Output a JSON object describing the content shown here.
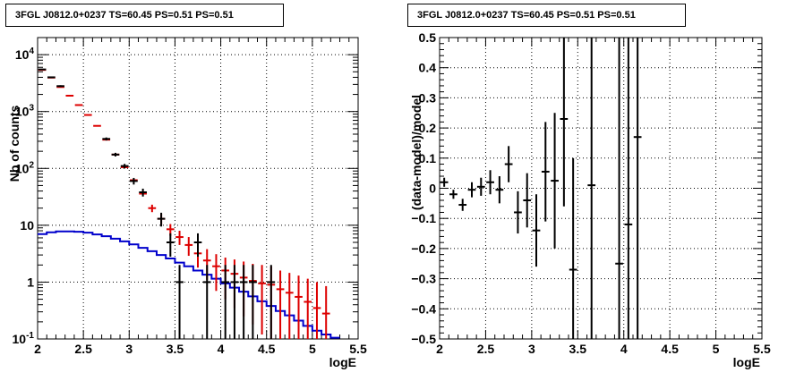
{
  "chart_data": [
    {
      "type": "scatter",
      "title": "3FGL J0812.0+0237 TS=60.45 PS=0.51 PS=0.51",
      "xlabel": "logE",
      "ylabel": "Nb of counts",
      "xlim": [
        2,
        5.5
      ],
      "ylim": [
        0.1,
        20000
      ],
      "yscale": "log",
      "grid": true,
      "x_ticks": [
        "2",
        "2.5",
        "3",
        "3.5",
        "4",
        "4.5",
        "5",
        "5.5"
      ],
      "y_ticks": [
        "10^{-1}",
        "1",
        "10",
        "10^{2}",
        "10^{3}",
        "10^{4}"
      ],
      "colors": {
        "data": "#000000",
        "model": "#dd0000",
        "background": "#0000cc"
      },
      "series": [
        {
          "role": "data",
          "points": [
            {
              "x": 2.05,
              "y": 5500,
              "lo": 5350,
              "hi": 5650
            },
            {
              "x": 2.15,
              "y": 4000,
              "lo": 3870,
              "hi": 4130
            },
            {
              "x": 2.25,
              "y": 2800,
              "lo": 2700,
              "hi": 2900
            },
            {
              "x": 2.75,
              "y": 330,
              "lo": 310,
              "hi": 350
            },
            {
              "x": 2.85,
              "y": 175,
              "lo": 162,
              "hi": 188
            },
            {
              "x": 2.95,
              "y": 110,
              "lo": 100,
              "hi": 120
            },
            {
              "x": 3.05,
              "y": 60,
              "lo": 52,
              "hi": 68
            },
            {
              "x": 3.15,
              "y": 38,
              "lo": 32,
              "hi": 44
            },
            {
              "x": 3.35,
              "y": 13,
              "lo": 9.5,
              "hi": 16.6
            },
            {
              "x": 3.45,
              "y": 5,
              "lo": 2.8,
              "hi": 7.2
            },
            {
              "x": 3.55,
              "y": 1,
              "lo": 0.1,
              "hi": 2
            },
            {
              "x": 3.75,
              "y": 5,
              "lo": 2.8,
              "hi": 7.2
            },
            {
              "x": 3.85,
              "y": 1,
              "lo": 0.1,
              "hi": 2
            },
            {
              "x": 4.05,
              "y": 1,
              "lo": 0.1,
              "hi": 2
            },
            {
              "x": 4.15,
              "y": 1,
              "lo": 0.1,
              "hi": 2
            },
            {
              "x": 4.25,
              "y": 1,
              "lo": 0.1,
              "hi": 2
            },
            {
              "x": 4.35,
              "y": 1,
              "lo": 0.1,
              "hi": 2
            },
            {
              "x": 4.55,
              "y": 1,
              "lo": 0.1,
              "hi": 2
            }
          ]
        },
        {
          "role": "model",
          "points": [
            {
              "x": 2.05,
              "y": 5400
            },
            {
              "x": 2.15,
              "y": 3950
            },
            {
              "x": 2.25,
              "y": 2700
            },
            {
              "x": 2.35,
              "y": 1900
            },
            {
              "x": 2.45,
              "y": 1300
            },
            {
              "x": 2.55,
              "y": 870
            },
            {
              "x": 2.65,
              "y": 560
            },
            {
              "x": 2.75,
              "y": 320
            },
            {
              "x": 2.85,
              "y": 175
            },
            {
              "x": 2.95,
              "y": 105
            },
            {
              "x": 3.05,
              "y": 62
            },
            {
              "x": 3.15,
              "y": 36
            },
            {
              "x": 3.25,
              "y": 20,
              "lo": 17,
              "hi": 23
            },
            {
              "x": 3.35,
              "y": 13,
              "lo": 10,
              "hi": 16
            },
            {
              "x": 3.45,
              "y": 8.5,
              "lo": 6.5,
              "hi": 10.5
            },
            {
              "x": 3.55,
              "y": 6.2,
              "lo": 4.5,
              "hi": 8
            },
            {
              "x": 3.65,
              "y": 4.5,
              "lo": 2.9,
              "hi": 6.2
            },
            {
              "x": 3.75,
              "y": 3.2,
              "lo": 1.8,
              "hi": 4.6
            },
            {
              "x": 3.85,
              "y": 2.4,
              "lo": 1.1,
              "hi": 3.8
            },
            {
              "x": 3.95,
              "y": 1.9,
              "lo": 0.7,
              "hi": 3.1
            },
            {
              "x": 4.05,
              "y": 1.6,
              "lo": 0.5,
              "hi": 2.7
            },
            {
              "x": 4.15,
              "y": 1.4,
              "lo": 0.35,
              "hi": 2.5
            },
            {
              "x": 4.25,
              "y": 1.2,
              "lo": 0.25,
              "hi": 2.3
            },
            {
              "x": 4.35,
              "y": 1.05,
              "lo": 0.18,
              "hi": 2.1
            },
            {
              "x": 4.45,
              "y": 0.95,
              "lo": 0.12,
              "hi": 2.0
            },
            {
              "x": 4.55,
              "y": 0.9,
              "lo": 0.1,
              "hi": 1.9
            },
            {
              "x": 4.65,
              "y": 0.75,
              "lo": 0.1,
              "hi": 1.6
            },
            {
              "x": 4.75,
              "y": 0.65,
              "lo": 0.1,
              "hi": 1.45
            },
            {
              "x": 4.85,
              "y": 0.55,
              "lo": 0.1,
              "hi": 1.3
            },
            {
              "x": 4.95,
              "y": 0.45,
              "lo": 0.1,
              "hi": 1.15
            },
            {
              "x": 5.05,
              "y": 0.35,
              "lo": 0.1,
              "hi": 1.0
            },
            {
              "x": 5.15,
              "y": 0.28,
              "lo": 0.1,
              "hi": 0.85
            }
          ]
        },
        {
          "role": "background",
          "points": [
            {
              "x": 2.05,
              "y": 7.0
            },
            {
              "x": 2.15,
              "y": 7.5
            },
            {
              "x": 2.25,
              "y": 7.8
            },
            {
              "x": 2.35,
              "y": 7.8
            },
            {
              "x": 2.45,
              "y": 7.7
            },
            {
              "x": 2.55,
              "y": 7.4
            },
            {
              "x": 2.65,
              "y": 6.9
            },
            {
              "x": 2.75,
              "y": 6.4
            },
            {
              "x": 2.85,
              "y": 5.8
            },
            {
              "x": 2.95,
              "y": 5.2
            },
            {
              "x": 3.05,
              "y": 4.6
            },
            {
              "x": 3.15,
              "y": 4.0
            },
            {
              "x": 3.25,
              "y": 3.5
            },
            {
              "x": 3.35,
              "y": 3.0
            },
            {
              "x": 3.45,
              "y": 2.6
            },
            {
              "x": 3.55,
              "y": 2.2
            },
            {
              "x": 3.65,
              "y": 1.9
            },
            {
              "x": 3.75,
              "y": 1.6
            },
            {
              "x": 3.85,
              "y": 1.35
            },
            {
              "x": 3.95,
              "y": 1.15
            },
            {
              "x": 4.05,
              "y": 0.95
            },
            {
              "x": 4.15,
              "y": 0.8
            },
            {
              "x": 4.25,
              "y": 0.68
            },
            {
              "x": 4.35,
              "y": 0.56
            },
            {
              "x": 4.45,
              "y": 0.46
            },
            {
              "x": 4.55,
              "y": 0.38
            },
            {
              "x": 4.65,
              "y": 0.31
            },
            {
              "x": 4.75,
              "y": 0.26
            },
            {
              "x": 4.85,
              "y": 0.21
            },
            {
              "x": 4.95,
              "y": 0.17
            },
            {
              "x": 5.05,
              "y": 0.14
            },
            {
              "x": 5.15,
              "y": 0.12
            },
            {
              "x": 5.25,
              "y": 0.105
            }
          ]
        }
      ]
    },
    {
      "type": "scatter",
      "title": "3FGL J0812.0+0237 TS=60.45 PS=0.51 PS=0.51",
      "xlabel": "logE",
      "ylabel": "(data-model)/model",
      "xlim": [
        2,
        5.5
      ],
      "ylim": [
        -0.5,
        0.5
      ],
      "grid": true,
      "x_ticks": [
        "2",
        "2.5",
        "3",
        "3.5",
        "4",
        "4.5",
        "5",
        "5.5"
      ],
      "y_ticks": [
        "−0.5",
        "−0.4",
        "−0.3",
        "−0.2",
        "−0.1",
        "0",
        "0.1",
        "0.2",
        "0.3",
        "0.4",
        "0.5"
      ],
      "colors": {
        "data": "#000000"
      },
      "series": [
        {
          "role": "residual",
          "points": [
            {
              "x": 2.05,
              "y": 0.02,
              "lo": 0.005,
              "hi": 0.035
            },
            {
              "x": 2.15,
              "y": -0.02,
              "lo": -0.035,
              "hi": -0.005
            },
            {
              "x": 2.25,
              "y": -0.055,
              "lo": -0.075,
              "hi": -0.035
            },
            {
              "x": 2.35,
              "y": -0.005,
              "lo": -0.03,
              "hi": 0.02
            },
            {
              "x": 2.45,
              "y": 0.005,
              "lo": -0.025,
              "hi": 0.035
            },
            {
              "x": 2.55,
              "y": 0.02,
              "lo": -0.02,
              "hi": 0.06
            },
            {
              "x": 2.65,
              "y": -0.005,
              "lo": -0.05,
              "hi": 0.04
            },
            {
              "x": 2.75,
              "y": 0.08,
              "lo": 0.02,
              "hi": 0.14
            },
            {
              "x": 2.85,
              "y": -0.08,
              "lo": -0.15,
              "hi": -0.01
            },
            {
              "x": 2.95,
              "y": -0.04,
              "lo": -0.13,
              "hi": 0.05
            },
            {
              "x": 3.05,
              "y": -0.14,
              "lo": -0.26,
              "hi": -0.02
            },
            {
              "x": 3.15,
              "y": 0.055,
              "lo": -0.11,
              "hi": 0.22
            },
            {
              "x": 3.25,
              "y": 0.025,
              "lo": -0.2,
              "hi": 0.25
            },
            {
              "x": 3.35,
              "y": 0.23,
              "lo": -0.06,
              "hi": 0.5
            },
            {
              "x": 3.45,
              "y": -0.27,
              "lo": -0.5,
              "hi": 0.1
            },
            {
              "x": 3.65,
              "y": 0.01,
              "lo": -0.5,
              "hi": 0.5
            },
            {
              "x": 3.95,
              "y": -0.25,
              "lo": -0.5,
              "hi": 0.5
            },
            {
              "x": 4.05,
              "y": -0.12,
              "lo": -0.5,
              "hi": 0.5
            },
            {
              "x": 4.15,
              "y": 0.17,
              "lo": -0.5,
              "hi": 0.5
            }
          ]
        }
      ]
    }
  ]
}
